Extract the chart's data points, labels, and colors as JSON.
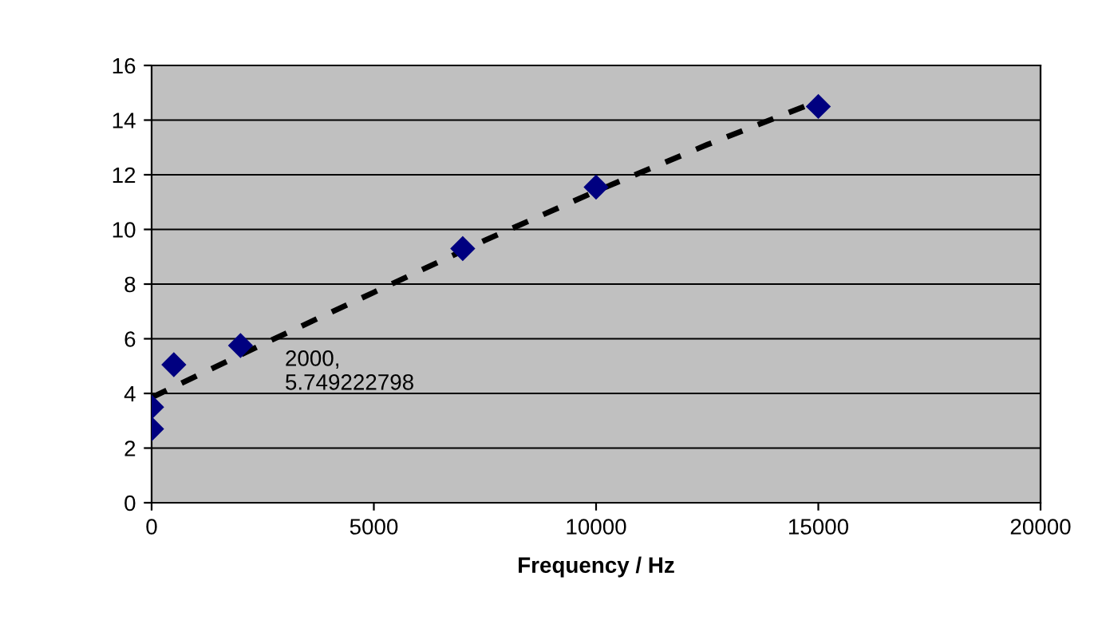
{
  "chart_data": {
    "type": "scatter",
    "xlabel": "Frequency / Hz",
    "series": [
      {
        "color": "#000080",
        "marker": "diamond",
        "x": [
          0,
          0,
          500,
          2000,
          7000,
          10000,
          15000
        ],
        "values": [
          2.7,
          3.5,
          5.05,
          5.75,
          9.3,
          11.55,
          14.5
        ]
      },
      {
        "type": "line",
        "color": "#000000",
        "line_style": "dashed",
        "marker": "none",
        "x": [
          0,
          2500,
          5000,
          7500,
          10000,
          12500,
          15000
        ],
        "values": [
          3.85,
          5.8,
          7.7,
          9.6,
          11.4,
          13.1,
          14.7
        ]
      }
    ],
    "annotations": [
      {
        "text": "2000,\n5.749222798",
        "x": 2000,
        "y": 5.75
      }
    ],
    "xlim": [
      0,
      20000
    ],
    "xticks": [
      0,
      5000,
      10000,
      15000,
      20000
    ],
    "ylim": [
      0,
      16
    ],
    "yticks": [
      0,
      2,
      4,
      6,
      8,
      10,
      12,
      14,
      16
    ],
    "grid": "y"
  }
}
